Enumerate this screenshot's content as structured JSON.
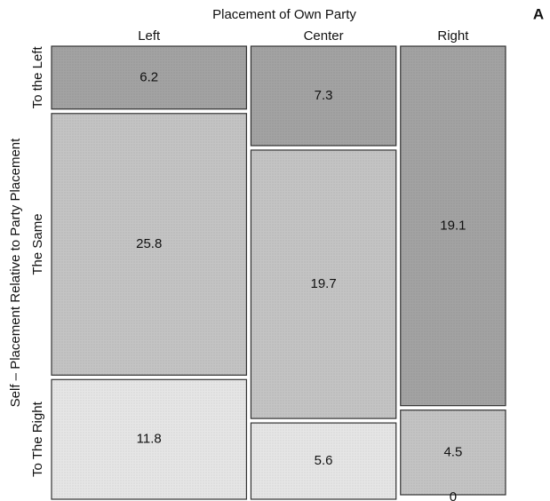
{
  "chart_data": {
    "type": "mosaic",
    "title": "Placement of Own Party",
    "panel_label": "A",
    "y_axis_label": "Self – Placement Relative to Party Placement",
    "categories": [
      "Left",
      "Center",
      "Right"
    ],
    "series": [
      {
        "name": "To the Left",
        "color": "#a3a3a3",
        "values": [
          6.2,
          7.3,
          19.1
        ]
      },
      {
        "name": "The Same",
        "color": "#c4c4c4",
        "values": [
          25.8,
          19.7,
          4.5
        ]
      },
      {
        "name": "To The Right",
        "color": "#e6e6e6",
        "values": [
          11.8,
          5.6,
          0
        ]
      }
    ]
  }
}
